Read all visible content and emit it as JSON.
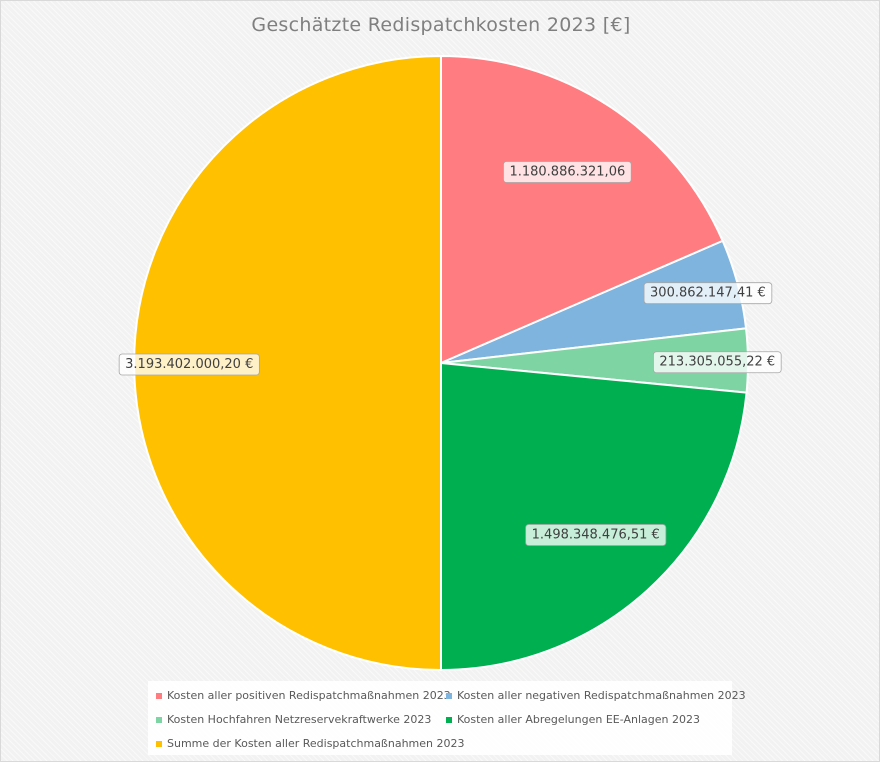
{
  "chart_data": {
    "type": "pie",
    "title": "Geschätzte Redispatchkosten 2023 [€]",
    "slices": [
      {
        "label": "Kosten aller positiven Redispatchmaßnahmen 2023",
        "value": 1180886321.06,
        "display": "1.180.886.321,06",
        "color": "#ff7c80"
      },
      {
        "label": "Kosten aller negativen Redispatchmaßnahmen 2023",
        "value": 300862147.41,
        "display": "300.862.147,41 €",
        "color": "#7eb4de"
      },
      {
        "label": "Kosten Hochfahren Netzreservekraftwerke 2023",
        "value": 213305055.22,
        "display": "213.305.055,22 €",
        "color": "#7fd4a4"
      },
      {
        "label": "Kosten aller Abregelungen EE-Anlagen 2023",
        "value": 1498348476.51,
        "display": "1.498.348.476,51 €",
        "color": "#00b050"
      },
      {
        "label": "Summe der Kosten aller Redispatchmaßnahmen 2023",
        "value": 3193402000.2,
        "display": "3.193.402.000,20 €",
        "color": "#ffc000"
      }
    ],
    "legend_position": "bottom"
  }
}
